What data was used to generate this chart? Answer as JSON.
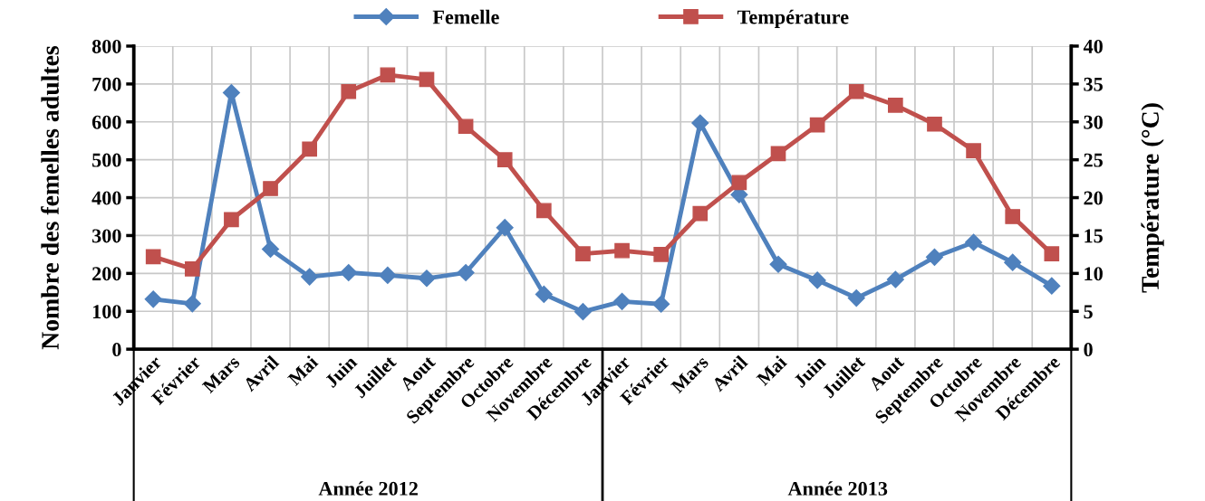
{
  "chart_data": {
    "type": "line",
    "categories": [
      "Janvier",
      "Février",
      "Mars",
      "Avril",
      "Mai",
      "Juin",
      "Juillet",
      "Aout",
      "Septembre",
      "Octobre",
      "Novembre",
      "Décembre",
      "Janvier",
      "Février",
      "Mars",
      "Avril",
      "Mai",
      "Juin",
      "Juillet",
      "Aout",
      "Septembre",
      "Octobre",
      "Novembre",
      "Décembre"
    ],
    "series": [
      {
        "name": "Femelle",
        "color": "#4f81bd",
        "marker": "diamond",
        "values": [
          132,
          120,
          677,
          264,
          191,
          202,
          195,
          187,
          202,
          321,
          145,
          99,
          126,
          119,
          597,
          408,
          224,
          182,
          135,
          184,
          243,
          282,
          229,
          167
        ]
      },
      {
        "name": "Température",
        "color": "#c0504d",
        "marker": "square",
        "axis": "y2",
        "values": [
          12.2,
          10.6,
          17.1,
          21.2,
          26.4,
          34.0,
          36.2,
          35.6,
          29.4,
          25.0,
          18.3,
          12.6,
          13.0,
          12.5,
          17.9,
          22.0,
          25.8,
          29.6,
          34.0,
          32.2,
          29.7,
          26.2,
          17.5,
          12.6
        ]
      }
    ],
    "ylabel": "Nombre des femelles adultes",
    "y2label": "Température (°C)",
    "ylim": [
      0,
      800
    ],
    "yticks": [
      0,
      100,
      200,
      300,
      400,
      500,
      600,
      700,
      800
    ],
    "y2lim": [
      0,
      40
    ],
    "y2ticks": [
      0,
      5,
      10,
      15,
      20,
      25,
      30,
      35,
      40
    ],
    "annotations": [
      "Année 2012",
      "Année 2013"
    ],
    "grid": true,
    "legend": "top",
    "line_style": "solid"
  }
}
